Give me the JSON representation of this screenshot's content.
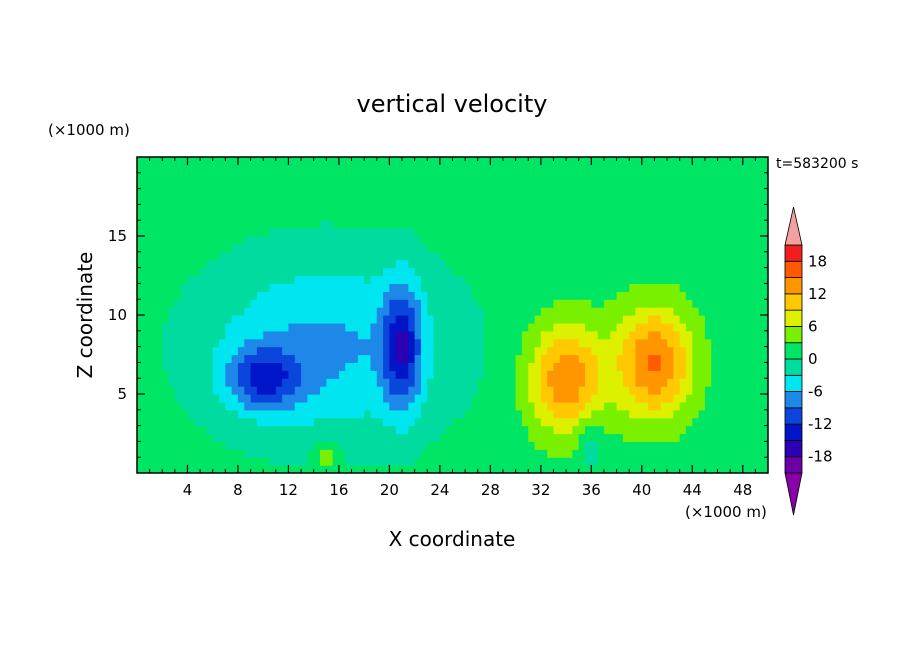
{
  "chart_data": {
    "type": "heatmap",
    "title": "vertical velocity",
    "xlabel": "X coordinate",
    "ylabel": "Z coordinate",
    "x_unit": "(×1000 m)",
    "y_unit": "(×1000 m)",
    "time_label": "t=583200 s",
    "xlim": [
      0,
      50
    ],
    "ylim": [
      0,
      20
    ],
    "x_ticks": [
      4,
      8,
      12,
      16,
      20,
      24,
      28,
      32,
      36,
      40,
      44,
      48
    ],
    "y_ticks": [
      5,
      10,
      15
    ],
    "colorbar": {
      "tick_labels": [
        18,
        12,
        6,
        0,
        -6,
        -12,
        -18
      ],
      "min_arrow_color": "#8a00a8",
      "max_arrow_color": "#f4a0a0",
      "bands": [
        {
          "from": -21,
          "to": -18,
          "color": "#6a00a8"
        },
        {
          "from": -18,
          "to": -15,
          "color": "#2d00b4"
        },
        {
          "from": -15,
          "to": -12,
          "color": "#0014c8"
        },
        {
          "from": -12,
          "to": -9,
          "color": "#0a46dc"
        },
        {
          "from": -9,
          "to": -6,
          "color": "#1e88e8"
        },
        {
          "from": -6,
          "to": -3,
          "color": "#00e6f0"
        },
        {
          "from": -3,
          "to": 0,
          "color": "#00dca0"
        },
        {
          "from": 0,
          "to": 3,
          "color": "#00e664"
        },
        {
          "from": 3,
          "to": 6,
          "color": "#78f000"
        },
        {
          "from": 6,
          "to": 9,
          "color": "#dcf000"
        },
        {
          "from": 9,
          "to": 12,
          "color": "#ffc800"
        },
        {
          "from": 12,
          "to": 15,
          "color": "#ff9600"
        },
        {
          "from": 15,
          "to": 18,
          "color": "#ff5a00"
        },
        {
          "from": 18,
          "to": 21,
          "color": "#f01e1e"
        }
      ]
    },
    "features": [
      {
        "x": 15,
        "z": 8,
        "value": -8,
        "rx": 10,
        "rz": 6
      },
      {
        "x": 10,
        "z": 6,
        "value": -10,
        "rx": 3,
        "rz": 2
      },
      {
        "x": 21,
        "z": 8,
        "value": -12,
        "rx": 1.5,
        "rz": 4
      },
      {
        "x": 34,
        "z": 6,
        "value": 13,
        "rx": 3,
        "rz": 3.5
      },
      {
        "x": 41,
        "z": 7,
        "value": 14,
        "rx": 3,
        "rz": 3.5
      },
      {
        "x": 36,
        "z": 2,
        "value": -4,
        "rx": 1,
        "rz": 2
      },
      {
        "x": 15,
        "z": 1,
        "value": 5,
        "rx": 1,
        "rz": 1
      }
    ]
  }
}
